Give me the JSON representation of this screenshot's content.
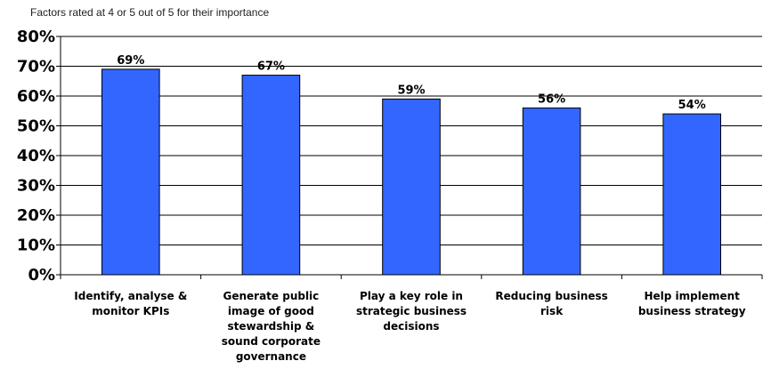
{
  "chart_data": {
    "type": "bar",
    "title": "",
    "subtitle": "Factors rated at 4 or 5 out of 5 for their importance",
    "xlabel": "",
    "ylabel": "",
    "ylim": [
      0,
      80
    ],
    "yticks": [
      "0%",
      "10%",
      "20%",
      "30%",
      "40%",
      "50%",
      "60%",
      "70%",
      "80%"
    ],
    "grid": true,
    "legend": "none",
    "categories": [
      "Identify, analyse & monitor KPIs",
      "Generate public image of good stewardship & sound corporate governance",
      "Play a key role in strategic business decisions",
      "Reducing business risk",
      "Help implement business strategy"
    ],
    "category_lines": [
      [
        "Identify, analyse &",
        "monitor KPIs"
      ],
      [
        "Generate public",
        "image of good",
        "stewardship &",
        "sound corporate",
        "governance"
      ],
      [
        "Play a key role in",
        "strategic business",
        "decisions"
      ],
      [
        "Reducing business",
        "risk"
      ],
      [
        "Help implement",
        "business strategy"
      ]
    ],
    "values": [
      69,
      67,
      59,
      56,
      54
    ],
    "value_labels": [
      "69%",
      "67%",
      "59%",
      "56%",
      "54%"
    ],
    "bar_color": "#3366ff",
    "bar_edge_color": "#000000"
  }
}
